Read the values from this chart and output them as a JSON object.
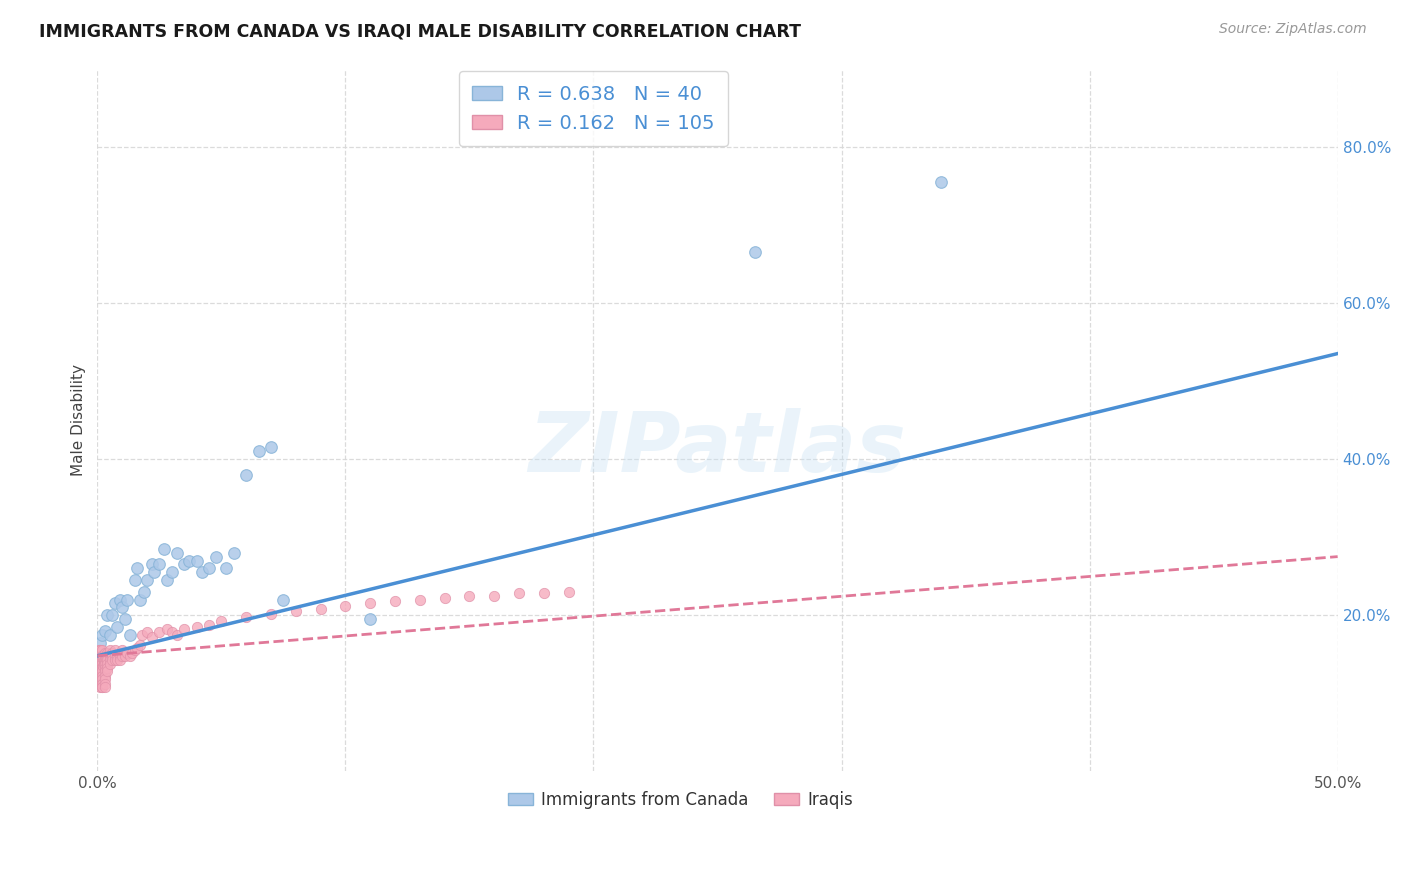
{
  "title": "IMMIGRANTS FROM CANADA VS IRAQI MALE DISABILITY CORRELATION CHART",
  "source": "Source: ZipAtlas.com",
  "ylabel": "Male Disability",
  "xlim": [
    0.0,
    0.5
  ],
  "ylim": [
    0.0,
    0.9
  ],
  "xticks": [
    0.0,
    0.1,
    0.2,
    0.3,
    0.4,
    0.5
  ],
  "xtick_labels": [
    "0.0%",
    "",
    "",
    "",
    "",
    "50.0%"
  ],
  "yticks": [
    0.2,
    0.4,
    0.6,
    0.8
  ],
  "ytick_labels": [
    "20.0%",
    "40.0%",
    "60.0%",
    "80.0%"
  ],
  "background_color": "#ffffff",
  "grid_color": "#d8d8d8",
  "watermark_text": "ZIPatlas",
  "blue_color": "#adc8e8",
  "pink_color": "#f5aabc",
  "blue_line_color": "#4a8fd4",
  "pink_line_color": "#e07898",
  "legend_R_blue": "0.638",
  "legend_N_blue": "40",
  "legend_R_pink": "0.162",
  "legend_N_pink": "105",
  "legend_label_blue": "Immigrants from Canada",
  "legend_label_pink": "Iraqis",
  "blue_x": [
    0.001,
    0.002,
    0.003,
    0.004,
    0.005,
    0.006,
    0.007,
    0.008,
    0.009,
    0.01,
    0.011,
    0.012,
    0.013,
    0.015,
    0.016,
    0.017,
    0.019,
    0.02,
    0.022,
    0.023,
    0.025,
    0.027,
    0.028,
    0.03,
    0.032,
    0.035,
    0.037,
    0.04,
    0.042,
    0.045,
    0.048,
    0.052,
    0.055,
    0.06,
    0.065,
    0.07,
    0.075,
    0.11,
    0.265,
    0.34
  ],
  "blue_y": [
    0.165,
    0.175,
    0.18,
    0.2,
    0.175,
    0.2,
    0.215,
    0.185,
    0.22,
    0.21,
    0.195,
    0.22,
    0.175,
    0.245,
    0.26,
    0.22,
    0.23,
    0.245,
    0.265,
    0.255,
    0.265,
    0.285,
    0.245,
    0.255,
    0.28,
    0.265,
    0.27,
    0.27,
    0.255,
    0.26,
    0.275,
    0.26,
    0.28,
    0.38,
    0.41,
    0.415,
    0.22,
    0.195,
    0.665,
    0.755
  ],
  "pink_x": [
    0.0005,
    0.0006,
    0.0007,
    0.0008,
    0.0008,
    0.0009,
    0.001,
    0.001,
    0.001,
    0.001,
    0.001,
    0.001,
    0.001,
    0.001,
    0.001,
    0.001,
    0.0012,
    0.0013,
    0.0014,
    0.0015,
    0.0015,
    0.0016,
    0.0017,
    0.0018,
    0.0018,
    0.0019,
    0.002,
    0.002,
    0.002,
    0.002,
    0.002,
    0.002,
    0.002,
    0.002,
    0.002,
    0.002,
    0.0022,
    0.0023,
    0.0025,
    0.0026,
    0.003,
    0.003,
    0.003,
    0.003,
    0.003,
    0.003,
    0.003,
    0.003,
    0.003,
    0.003,
    0.0035,
    0.004,
    0.004,
    0.004,
    0.004,
    0.004,
    0.004,
    0.005,
    0.005,
    0.005,
    0.005,
    0.006,
    0.006,
    0.006,
    0.007,
    0.007,
    0.007,
    0.008,
    0.008,
    0.009,
    0.009,
    0.01,
    0.01,
    0.011,
    0.012,
    0.013,
    0.014,
    0.015,
    0.016,
    0.017,
    0.018,
    0.02,
    0.022,
    0.025,
    0.028,
    0.03,
    0.032,
    0.035,
    0.04,
    0.045,
    0.05,
    0.06,
    0.07,
    0.08,
    0.09,
    0.1,
    0.11,
    0.12,
    0.13,
    0.14,
    0.15,
    0.16,
    0.17,
    0.18,
    0.19
  ],
  "pink_y": [
    0.155,
    0.148,
    0.142,
    0.138,
    0.132,
    0.128,
    0.155,
    0.148,
    0.142,
    0.138,
    0.132,
    0.128,
    0.122,
    0.118,
    0.112,
    0.108,
    0.155,
    0.148,
    0.142,
    0.138,
    0.132,
    0.128,
    0.122,
    0.118,
    0.112,
    0.108,
    0.155,
    0.148,
    0.142,
    0.138,
    0.132,
    0.128,
    0.122,
    0.118,
    0.112,
    0.108,
    0.145,
    0.135,
    0.142,
    0.138,
    0.152,
    0.148,
    0.142,
    0.138,
    0.132,
    0.128,
    0.122,
    0.118,
    0.112,
    0.108,
    0.145,
    0.152,
    0.148,
    0.142,
    0.138,
    0.132,
    0.128,
    0.155,
    0.148,
    0.142,
    0.138,
    0.152,
    0.148,
    0.142,
    0.155,
    0.148,
    0.142,
    0.148,
    0.142,
    0.148,
    0.142,
    0.155,
    0.148,
    0.148,
    0.152,
    0.148,
    0.152,
    0.155,
    0.158,
    0.162,
    0.175,
    0.178,
    0.172,
    0.178,
    0.182,
    0.178,
    0.175,
    0.182,
    0.185,
    0.188,
    0.192,
    0.198,
    0.202,
    0.205,
    0.208,
    0.212,
    0.215,
    0.218,
    0.22,
    0.222,
    0.225,
    0.225,
    0.228,
    0.228,
    0.23
  ],
  "blue_line_x": [
    0.0,
    0.5
  ],
  "blue_line_y": [
    0.148,
    0.535
  ],
  "pink_line_x": [
    0.0,
    0.5
  ],
  "pink_line_y": [
    0.148,
    0.275
  ]
}
